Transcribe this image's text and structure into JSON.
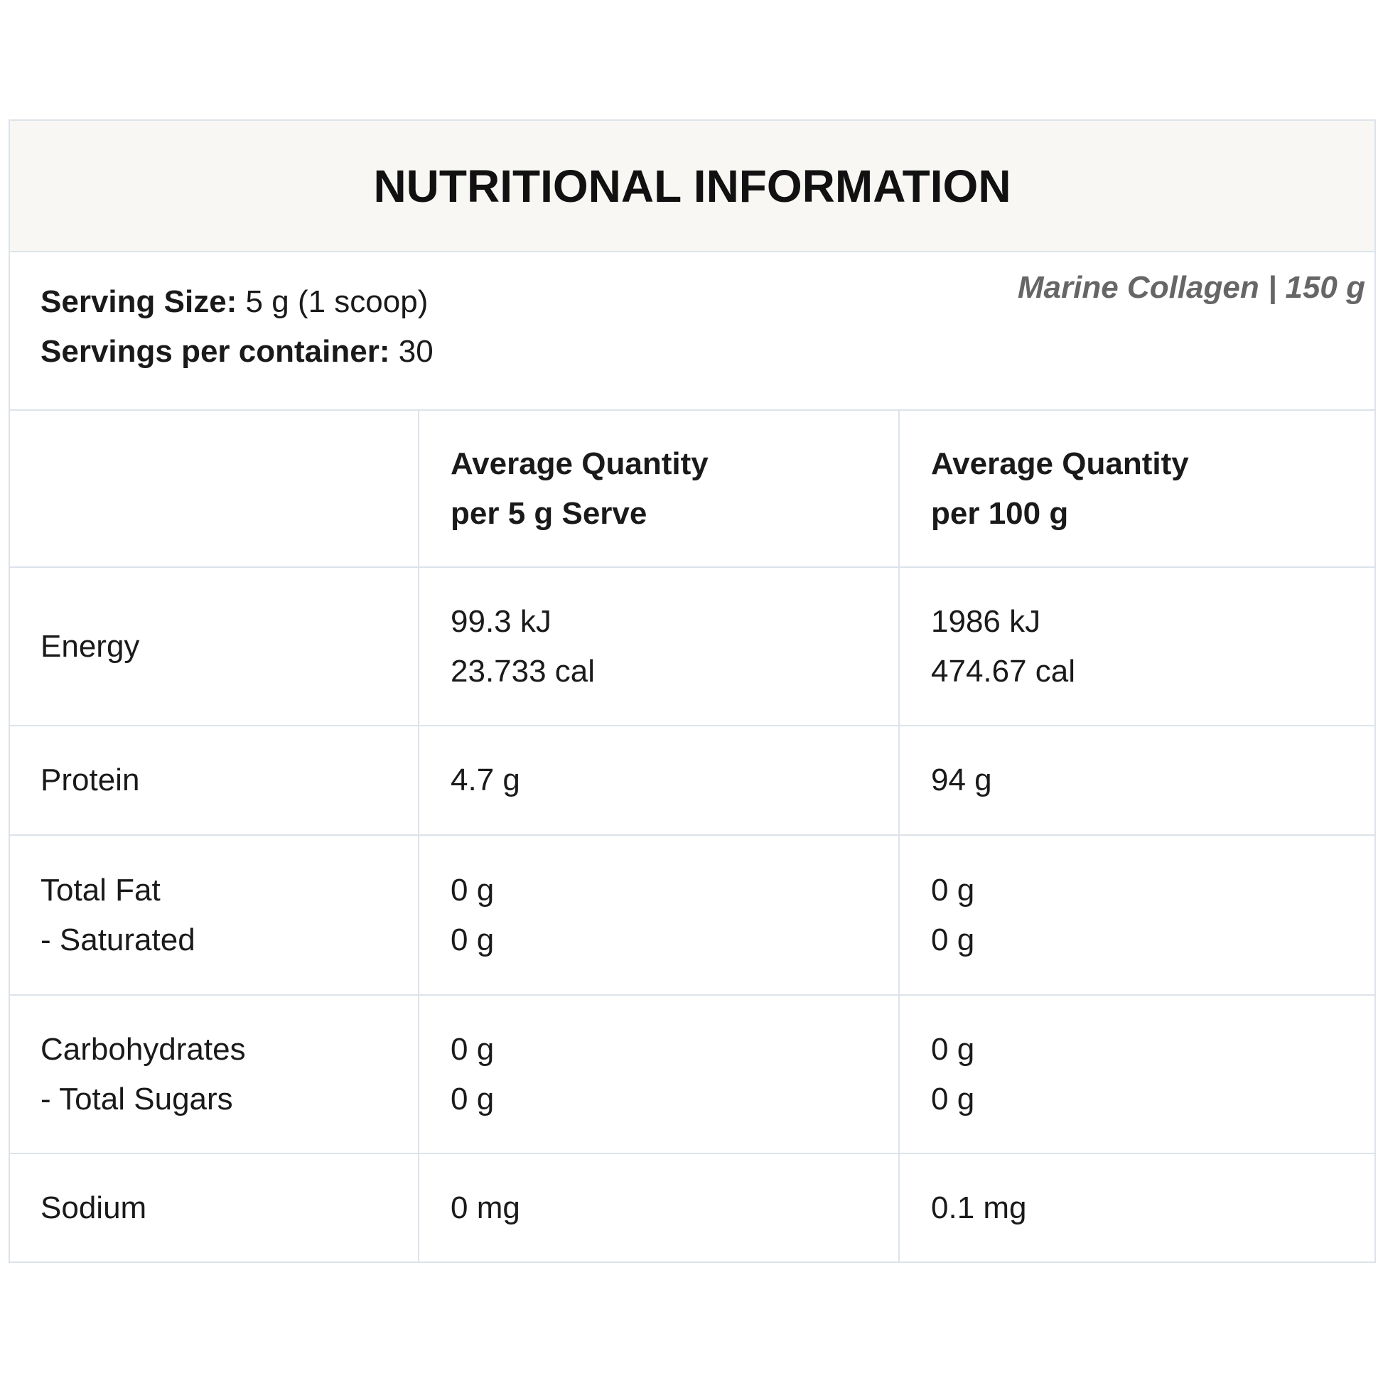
{
  "header": {
    "title": "NUTRITIONAL INFORMATION"
  },
  "serving": {
    "size_label": "Serving Size:",
    "size_value": "5 g (1 scoop)",
    "servings_label": "Servings per container:",
    "servings_value": "30",
    "product": "Marine Collagen | 150 g"
  },
  "table": {
    "columns": [
      [
        "Average Quantity",
        "per 5 g Serve"
      ],
      [
        "Average Quantity",
        "per 100 g"
      ]
    ],
    "rows": [
      [
        [
          "Energy"
        ],
        [
          "99.3 kJ",
          "23.733 cal"
        ],
        [
          "1986 kJ",
          "474.67 cal"
        ]
      ],
      [
        [
          "Protein"
        ],
        [
          "4.7 g"
        ],
        [
          "94 g"
        ]
      ],
      [
        [
          "Total Fat",
          "- Saturated"
        ],
        [
          "0 g",
          "0 g"
        ],
        [
          "0 g",
          "0 g"
        ]
      ],
      [
        [
          "Carbohydrates",
          "- Total Sugars"
        ],
        [
          "0 g",
          "0 g"
        ],
        [
          "0 g",
          "0 g"
        ]
      ],
      [
        [
          "Sodium"
        ],
        [
          "0 mg"
        ],
        [
          "0.1 mg"
        ]
      ]
    ]
  }
}
